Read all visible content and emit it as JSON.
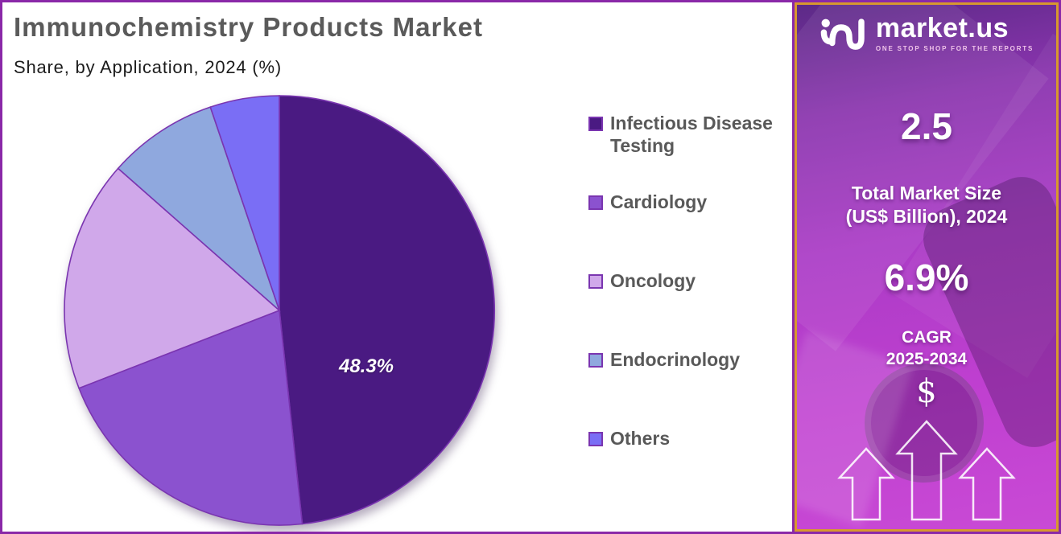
{
  "header": {
    "title": "Immunochemistry Products Market",
    "subtitle": "Share, by Application, 2024 (%)"
  },
  "chart_data": {
    "type": "pie",
    "title": "Immunochemistry Products Market",
    "subtitle": "Share, by Application, 2024 (%)",
    "unit": "%",
    "start_angle_deg": 0,
    "direction": "clockwise",
    "categories": [
      "Infectious Disease Testing",
      "Cardiology",
      "Oncology",
      "Endocrinology",
      "Others"
    ],
    "values": [
      48.3,
      20.8,
      17.4,
      8.3,
      5.2
    ],
    "colors": [
      "#4a1a82",
      "#8b52cf",
      "#d0a8ea",
      "#8fa8de",
      "#7a6ef5"
    ],
    "slice_border_color": "#7a35b0",
    "data_label": {
      "text": "48.3%",
      "slice": "Infectious Disease Testing",
      "color": "#ffffff"
    },
    "legend_position": "right"
  },
  "legend": {
    "items": [
      {
        "label": "Infectious Disease Testing",
        "color": "#4a1a82"
      },
      {
        "label": "Cardiology",
        "color": "#8b52cf"
      },
      {
        "label": "Oncology",
        "color": "#d0a8ea"
      },
      {
        "label": "Endocrinology",
        "color": "#8fa8de"
      },
      {
        "label": "Others",
        "color": "#7a6ef5"
      }
    ]
  },
  "side_panel": {
    "brand": {
      "name": "market.us",
      "tagline": "ONE STOP SHOP FOR THE REPORTS"
    },
    "market_size_value": "2.5",
    "market_size_label_line1": "Total Market Size",
    "market_size_label_line2": "(US$ Billion), 2024",
    "cagr_value": "6.9%",
    "cagr_label_line1": "CAGR",
    "cagr_label_line2": "2025-2034",
    "dollar_symbol": "$",
    "colors": {
      "gold_border": "#d7982e",
      "gradient_top": "#5c2a87",
      "gradient_bottom": "#c94ad5",
      "outer_border": "#8a28a8"
    }
  }
}
